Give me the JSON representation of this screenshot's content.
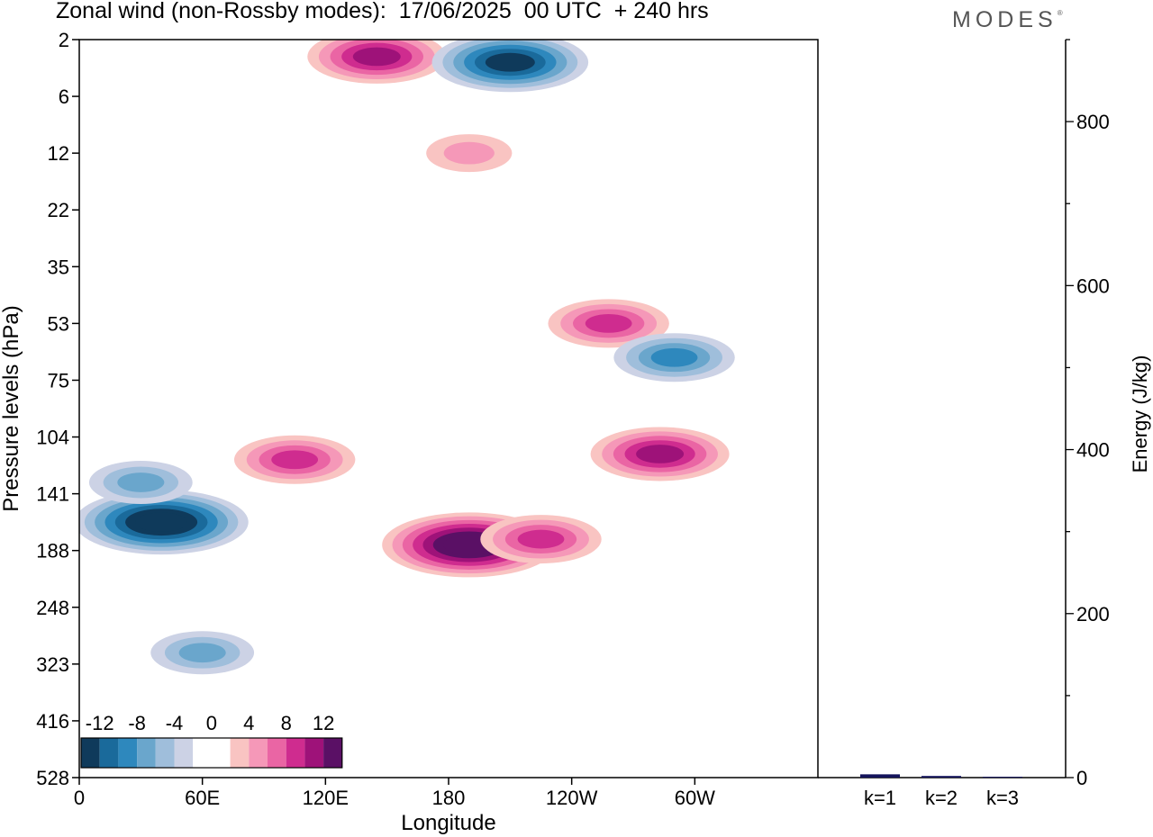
{
  "header": {
    "title": "Zonal wind (non-Rossby modes):  17/06/2025  00 UTC  + 240 hrs",
    "logo": "MODES"
  },
  "chart_data": [
    {
      "type": "heatmap",
      "title": "Zonal wind (non-Rossby modes):  17/06/2025  00 UTC  + 240 hrs",
      "xlabel": "Longitude",
      "ylabel": "Pressure levels (hPa)",
      "x_ticks": [
        "0",
        "60E",
        "120E",
        "180",
        "120W",
        "60W"
      ],
      "x_tick_lon": [
        0,
        60,
        120,
        180,
        240,
        300
      ],
      "xlim": [
        0,
        360
      ],
      "y_levels": [
        2,
        6,
        12,
        22,
        35,
        53,
        75,
        104,
        141,
        188,
        248,
        323,
        416,
        528
      ],
      "y_scale": "categorical (model levels, top to bottom)",
      "grid": false,
      "colorbar": {
        "placement": "bottom-left",
        "tick_labels": [
          "-12",
          "-8",
          "-4",
          "0",
          "4",
          "8",
          "12"
        ],
        "colors": [
          "#0f3a5b",
          "#1a6a9b",
          "#2e88bd",
          "#6aa6cc",
          "#9fbedb",
          "#ccd2e5",
          "#ffffff",
          "#ffffff",
          "#f9c4c2",
          "#f598b8",
          "#ea65a4",
          "#cf2c8f",
          "#9e1279",
          "#5a1065"
        ]
      },
      "features": [
        {
          "lon": 40,
          "level": 8.5,
          "value": -14
        },
        {
          "lon": 30,
          "level": 7.8,
          "value": -6
        },
        {
          "lon": 190,
          "level": 8.9,
          "value": 13
        },
        {
          "lon": 225,
          "level": 8.8,
          "value": 8
        },
        {
          "lon": 283,
          "level": 7.3,
          "value": 9
        },
        {
          "lon": 258,
          "level": 5.0,
          "value": 7
        },
        {
          "lon": 290,
          "level": 5.6,
          "value": -7
        },
        {
          "lon": 105,
          "level": 7.4,
          "value": 7
        },
        {
          "lon": 145,
          "level": 0.3,
          "value": 10
        },
        {
          "lon": 210,
          "level": 0.4,
          "value": -12
        },
        {
          "lon": 190,
          "level": 2.0,
          "value": 4
        },
        {
          "lon": 60,
          "level": 10.8,
          "value": -5
        }
      ]
    },
    {
      "type": "bar",
      "categories": [
        "k=1",
        "k=2",
        "k=3"
      ],
      "values": [
        4,
        2,
        1
      ],
      "ylabel": "Energy (J/kg)",
      "ylim": [
        0,
        900
      ],
      "y_ticks": [
        0,
        200,
        400,
        600,
        800
      ],
      "bar_color": "#14145c"
    }
  ]
}
